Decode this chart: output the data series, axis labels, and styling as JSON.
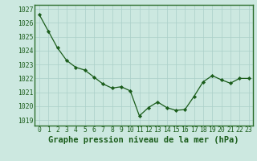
{
  "x": [
    0,
    1,
    2,
    3,
    4,
    5,
    6,
    7,
    8,
    9,
    10,
    11,
    12,
    13,
    14,
    15,
    16,
    17,
    18,
    19,
    20,
    21,
    22,
    23
  ],
  "y": [
    1026.6,
    1025.4,
    1024.2,
    1023.3,
    1022.8,
    1022.6,
    1022.1,
    1021.6,
    1021.3,
    1021.4,
    1021.1,
    1019.3,
    1019.9,
    1020.3,
    1019.9,
    1019.7,
    1019.75,
    1020.7,
    1021.75,
    1022.2,
    1021.9,
    1021.65,
    1022.0,
    1022.0
  ],
  "line_color": "#1a5c1a",
  "marker_color": "#1a5c1a",
  "bg_color": "#cce8e0",
  "grid_color": "#aacfc8",
  "border_color": "#2d6e2d",
  "title": "Graphe pression niveau de la mer (hPa)",
  "ylabel_ticks": [
    1019,
    1020,
    1021,
    1022,
    1023,
    1024,
    1025,
    1026,
    1027
  ],
  "xlabel_ticks": [
    0,
    1,
    2,
    3,
    4,
    5,
    6,
    7,
    8,
    9,
    10,
    11,
    12,
    13,
    14,
    15,
    16,
    17,
    18,
    19,
    20,
    21,
    22,
    23
  ],
  "ylim": [
    1018.6,
    1027.3
  ],
  "xlim": [
    -0.5,
    23.5
  ],
  "title_fontsize": 7.5,
  "tick_fontsize": 5.8
}
